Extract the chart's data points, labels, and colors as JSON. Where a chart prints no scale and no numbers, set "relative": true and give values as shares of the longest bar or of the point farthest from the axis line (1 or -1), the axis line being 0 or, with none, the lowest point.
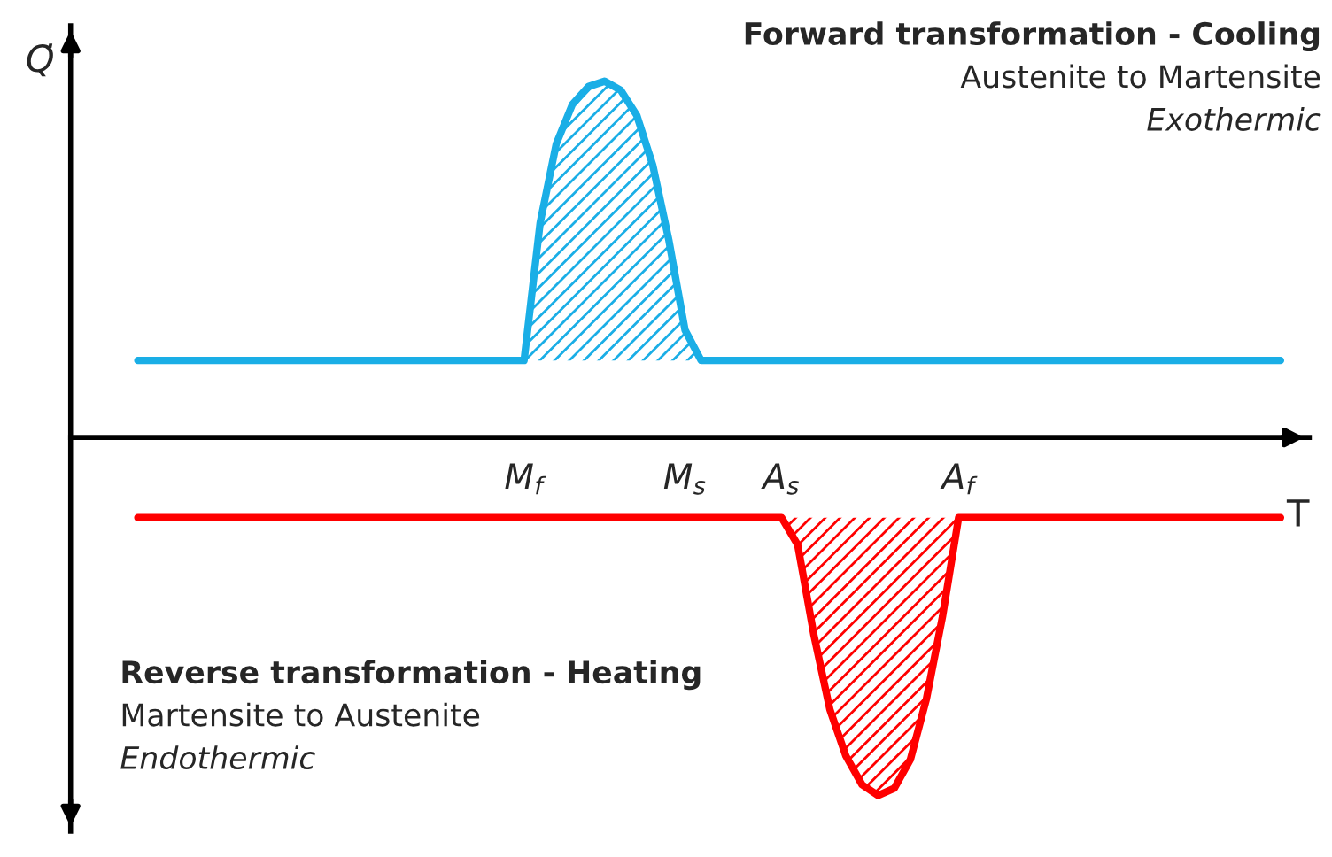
{
  "chart_data": {
    "type": "line",
    "relative": true,
    "xlabel": "T",
    "ylabel": "Q̇",
    "categories": [
      null,
      null,
      null,
      null,
      null,
      null,
      null,
      null,
      null,
      null,
      null,
      null,
      null,
      null,
      null,
      null,
      null,
      null,
      null,
      null,
      null,
      null,
      null,
      null,
      "M$_{f}$",
      null,
      null,
      null,
      null,
      null,
      null,
      null,
      null,
      null,
      "M$_{s}$",
      null,
      null,
      null,
      null,
      null,
      "A$_{s}$",
      null,
      null,
      null,
      null,
      null,
      null,
      null,
      null,
      null,
      null,
      "A$_{f}$",
      null,
      null,
      null,
      null,
      null,
      null,
      null,
      null,
      null,
      null,
      null,
      null,
      null,
      null,
      null,
      null,
      null,
      null,
      null,
      null
    ],
    "series": [
      {
        "color": "#1aaee6",
        "values": [
          0.215,
          0.215,
          0.215,
          0.215,
          0.215,
          0.215,
          0.215,
          0.215,
          0.215,
          0.215,
          0.215,
          0.215,
          0.215,
          0.215,
          0.215,
          0.215,
          0.215,
          0.215,
          0.215,
          0.215,
          0.215,
          0.215,
          0.215,
          0.215,
          0.215,
          0.6,
          0.82,
          0.93,
          0.98,
          0.995,
          0.97,
          0.9,
          0.76,
          0.55,
          0.3,
          0.215,
          0.215,
          0.215,
          0.215,
          0.215,
          0.215,
          0.215,
          0.215,
          0.215,
          0.215,
          0.215,
          0.215,
          0.215,
          0.215,
          0.215,
          0.215,
          0.215,
          0.215,
          0.215,
          0.215,
          0.215,
          0.215,
          0.215,
          0.215,
          0.215,
          0.215,
          0.215,
          0.215,
          0.215,
          0.215,
          0.215,
          0.215,
          0.215,
          0.215,
          0.215,
          0.215,
          0.215
        ]
      },
      {
        "color": "#ff0000",
        "values": [
          -0.224,
          -0.224,
          -0.224,
          -0.224,
          -0.224,
          -0.224,
          -0.224,
          -0.224,
          -0.224,
          -0.224,
          -0.224,
          -0.224,
          -0.224,
          -0.224,
          -0.224,
          -0.224,
          -0.224,
          -0.224,
          -0.224,
          -0.224,
          -0.224,
          -0.224,
          -0.224,
          -0.224,
          -0.224,
          -0.224,
          -0.224,
          -0.224,
          -0.224,
          -0.224,
          -0.224,
          -0.224,
          -0.224,
          -0.224,
          -0.224,
          -0.224,
          -0.224,
          -0.224,
          -0.224,
          -0.224,
          -0.224,
          -0.3,
          -0.55,
          -0.76,
          -0.89,
          -0.97,
          -1.0,
          -0.98,
          -0.9,
          -0.73,
          -0.5,
          -0.224,
          -0.224,
          -0.224,
          -0.224,
          -0.224,
          -0.224,
          -0.224,
          -0.224,
          -0.224,
          -0.224,
          -0.224,
          -0.224,
          -0.224,
          -0.224,
          -0.224,
          -0.224,
          -0.224,
          -0.224,
          -0.224,
          -0.224,
          -0.224
        ]
      }
    ],
    "annotations": [
      "Forward transformation - Cooling",
      "Austenite to Martensite",
      "Exothermic",
      "Reverse transformation - Heating",
      "Martensite to Austenite",
      "Endothermic"
    ],
    "grid": false
  }
}
